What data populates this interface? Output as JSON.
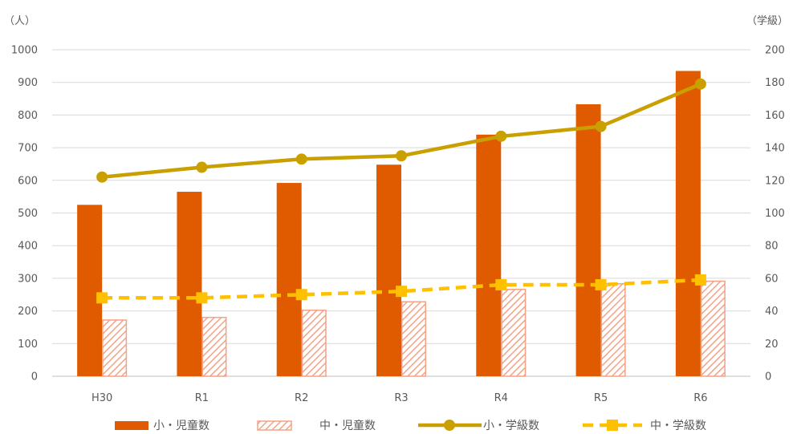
{
  "chart_data": {
    "type": "bar",
    "categories": [
      "H30",
      "R1",
      "R2",
      "R3",
      "R4",
      "R5",
      "R6"
    ],
    "left_axis": {
      "unit": "（人）",
      "ylim": [
        0,
        1000
      ],
      "ticks": [
        0,
        100,
        200,
        300,
        400,
        500,
        600,
        700,
        800,
        900,
        1000
      ]
    },
    "right_axis": {
      "unit": "（学級）",
      "ylim": [
        0,
        200
      ],
      "ticks": [
        0,
        20,
        40,
        60,
        80,
        100,
        120,
        140,
        160,
        180,
        200
      ]
    },
    "series": [
      {
        "name": "小・児童数",
        "kind": "bar",
        "axis": "left",
        "style": "solid",
        "color": "#E05A00",
        "values": [
          525,
          565,
          592,
          648,
          740,
          833,
          935
        ]
      },
      {
        "name": "中・児童数",
        "kind": "bar",
        "axis": "left",
        "style": "hatched",
        "color": "#F4A284",
        "values": [
          174,
          182,
          204,
          230,
          268,
          285,
          293
        ]
      },
      {
        "name": "小・学級数",
        "kind": "line",
        "axis": "right",
        "style": "solid-circle",
        "color": "#C9A000",
        "values": [
          122,
          128,
          133,
          135,
          147,
          153,
          179
        ]
      },
      {
        "name": "中・学級数",
        "kind": "line",
        "axis": "right",
        "style": "dashed-square",
        "color": "#FFC000",
        "values": [
          48,
          48,
          50,
          52,
          56,
          56,
          59
        ]
      }
    ],
    "grid": true,
    "legend_position": "bottom"
  }
}
